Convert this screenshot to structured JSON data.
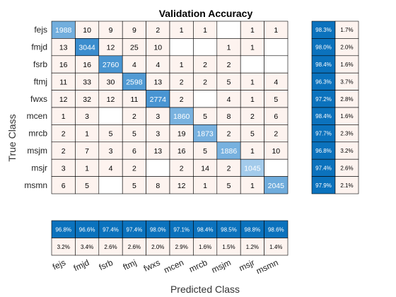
{
  "chart_data": {
    "type": "heatmap",
    "title": "Validation Accuracy",
    "xlabel": "Predicted Class",
    "ylabel": "True Class",
    "classes": [
      "fejs",
      "fmjd",
      "fsrb",
      "ftmj",
      "fwxs",
      "mcen",
      "mrcb",
      "msjm",
      "msjr",
      "msmn"
    ],
    "matrix": [
      [
        1988,
        10,
        9,
        9,
        2,
        1,
        1,
        null,
        1,
        1
      ],
      [
        13,
        3044,
        12,
        25,
        10,
        null,
        null,
        1,
        1,
        null
      ],
      [
        16,
        16,
        2760,
        4,
        4,
        1,
        2,
        2,
        null,
        null
      ],
      [
        11,
        33,
        30,
        2598,
        13,
        2,
        2,
        5,
        1,
        4
      ],
      [
        12,
        32,
        12,
        11,
        2774,
        2,
        null,
        4,
        1,
        5
      ],
      [
        1,
        3,
        null,
        2,
        3,
        1860,
        5,
        8,
        2,
        6
      ],
      [
        2,
        1,
        5,
        5,
        3,
        19,
        1873,
        2,
        5,
        2
      ],
      [
        2,
        7,
        3,
        6,
        13,
        16,
        5,
        1886,
        1,
        10
      ],
      [
        3,
        1,
        4,
        2,
        null,
        2,
        14,
        2,
        1045,
        null
      ],
      [
        6,
        5,
        null,
        5,
        8,
        12,
        1,
        5,
        1,
        2045
      ]
    ],
    "row_summary": {
      "correct": [
        "98.3%",
        "98.0%",
        "98.4%",
        "96.3%",
        "97.2%",
        "98.4%",
        "97.7%",
        "96.8%",
        "97.4%",
        "97.9%"
      ],
      "incorrect": [
        "1.7%",
        "2.0%",
        "1.6%",
        "3.7%",
        "2.8%",
        "1.6%",
        "2.3%",
        "3.2%",
        "2.6%",
        "2.1%"
      ]
    },
    "column_summary": {
      "correct": [
        "96.8%",
        "96.6%",
        "97.4%",
        "97.4%",
        "98.0%",
        "97.1%",
        "98.4%",
        "98.5%",
        "98.8%",
        "98.6%"
      ],
      "incorrect": [
        "3.2%",
        "3.4%",
        "2.6%",
        "2.6%",
        "2.0%",
        "2.9%",
        "1.6%",
        "1.5%",
        "1.2%",
        "1.4%"
      ]
    },
    "colors": {
      "summary_correct": "#0b72bd",
      "diag_high": "#3b8dce",
      "diag_low": "#a3cbeb",
      "offdiag_tint": "#fdf3ef",
      "summary_incorrect": "#fdf3ef",
      "grid": "#000000"
    }
  }
}
